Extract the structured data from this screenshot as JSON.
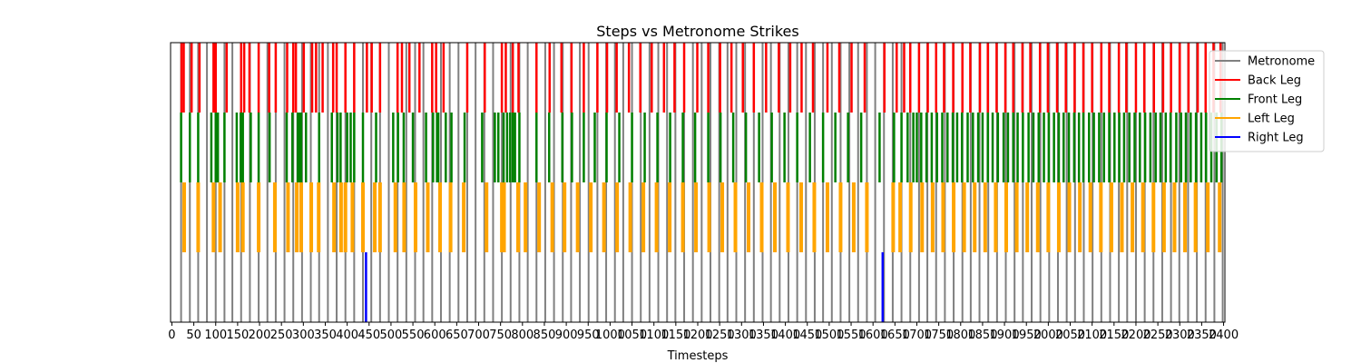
{
  "chart_data": {
    "type": "event-raster",
    "title": "Steps vs Metronome Strikes",
    "xlabel": "Timesteps",
    "ylabel": "",
    "xlim": [
      -3,
      2403
    ],
    "x_ticks": [
      0,
      50,
      100,
      150,
      200,
      250,
      300,
      350,
      400,
      450,
      500,
      550,
      600,
      650,
      700,
      750,
      800,
      850,
      900,
      950,
      1000,
      1050,
      1100,
      1150,
      1200,
      1250,
      1300,
      1350,
      1400,
      1450,
      1500,
      1550,
      1600,
      1650,
      1700,
      1750,
      1800,
      1850,
      1900,
      1950,
      2000,
      2050,
      2100,
      2150,
      2200,
      2250,
      2300,
      2350,
      2400
    ],
    "grid": false,
    "legend_position": "upper-right",
    "series": [
      {
        "name": "Metronome",
        "color": "#808080",
        "lane": [
          0,
          4
        ],
        "line_width": 2,
        "events": [
          21,
          41,
          60,
          80,
          100,
          120,
          138,
          158,
          178,
          198,
          218,
          237,
          257,
          277,
          297,
          317,
          336,
          356,
          376,
          396,
          416,
          436,
          455,
          475,
          495,
          515,
          535,
          555,
          574,
          594,
          614,
          634,
          654,
          674,
          693,
          713,
          733,
          753,
          773,
          793,
          812,
          832,
          852,
          872,
          892,
          911,
          931,
          951,
          971,
          991,
          1011,
          1030,
          1050,
          1070,
          1090,
          1110,
          1130,
          1149,
          1169,
          1189,
          1209,
          1229,
          1249,
          1268,
          1288,
          1308,
          1328,
          1348,
          1367,
          1387,
          1407,
          1427,
          1447,
          1467,
          1486,
          1506,
          1526,
          1546,
          1566,
          1586,
          1605,
          1625,
          1645,
          1665,
          1685,
          1705,
          1724,
          1744,
          1764,
          1784,
          1804,
          1823,
          1843,
          1863,
          1883,
          1903,
          1923,
          1942,
          1962,
          1982,
          2002,
          2022,
          2042,
          2061,
          2081,
          2101,
          2121,
          2141,
          2161,
          2180,
          2200,
          2220,
          2240,
          2260,
          2280,
          2299,
          2319,
          2339,
          2359,
          2379,
          2398
        ]
      },
      {
        "name": "Back Leg",
        "color": "#ff0000",
        "lane": [
          3,
          4
        ],
        "line_width": 2.5,
        "events": [
          22,
          27,
          45,
          63,
          95,
          100,
          125,
          158,
          165,
          177,
          198,
          222,
          237,
          263,
          277,
          283,
          301,
          320,
          329,
          344,
          368,
          376,
          396,
          416,
          445,
          456,
          475,
          515,
          525,
          542,
          565,
          594,
          603,
          620,
          674,
          714,
          753,
          762,
          778,
          791,
          832,
          862,
          889,
          912,
          940,
          971,
          993,
          1015,
          1043,
          1069,
          1095,
          1123,
          1147,
          1169,
          1199,
          1224,
          1251,
          1277,
          1303,
          1328,
          1356,
          1385,
          1411,
          1437,
          1463,
          1496,
          1523,
          1551,
          1581,
          1626,
          1654,
          1671,
          1685,
          1705,
          1725,
          1744,
          1762,
          1783,
          1804,
          1822,
          1844,
          1862,
          1882,
          1902,
          1920,
          1941,
          1959,
          1981,
          1999,
          2020,
          2040,
          2060,
          2080,
          2100,
          2121,
          2139,
          2161,
          2178,
          2200,
          2219,
          2241,
          2262,
          2280,
          2300,
          2320,
          2341,
          2359,
          2377,
          2393
        ]
      },
      {
        "name": "Front Leg",
        "color": "#008000",
        "lane": [
          2,
          3
        ],
        "line_width": 2.5,
        "events": [
          21,
          41,
          60,
          90,
          100,
          105,
          120,
          148,
          157,
          162,
          180,
          198,
          223,
          262,
          275,
          287,
          291,
          295,
          306,
          336,
          365,
          378,
          385,
          400,
          408,
          416,
          436,
          466,
          505,
          516,
          529,
          550,
          580,
          596,
          605,
          608,
          625,
          638,
          668,
          708,
          737,
          745,
          757,
          765,
          772,
          778,
          783,
          793,
          832,
          861,
          891,
          913,
          940,
          965,
          992,
          1021,
          1050,
          1079,
          1108,
          1137,
          1166,
          1194,
          1224,
          1252,
          1281,
          1310,
          1340,
          1369,
          1398,
          1427,
          1456,
          1486,
          1514,
          1543,
          1573,
          1615,
          1648,
          1665,
          1679,
          1692,
          1700,
          1710,
          1722,
          1734,
          1746,
          1758,
          1770,
          1782,
          1792,
          1803,
          1816,
          1828,
          1840,
          1850,
          1862,
          1873,
          1885,
          1898,
          1908,
          1920,
          1930,
          1942,
          1955,
          1966,
          1978,
          1990,
          2001,
          2013,
          2024,
          2035,
          2047,
          2059,
          2070,
          2080,
          2093,
          2104,
          2116,
          2127,
          2139,
          2151,
          2162,
          2173,
          2185,
          2197,
          2209,
          2221,
          2233,
          2245,
          2256,
          2268,
          2279,
          2292,
          2303,
          2314,
          2325,
          2337,
          2349,
          2360,
          2372,
          2384,
          2395
        ]
      },
      {
        "name": "Left Leg",
        "color": "#ffa500",
        "lane": [
          1,
          2
        ],
        "line_width": 4,
        "events": [
          28,
          60,
          95,
          110,
          150,
          162,
          198,
          235,
          265,
          285,
          295,
          318,
          335,
          370,
          386,
          396,
          412,
          436,
          463,
          475,
          510,
          530,
          556,
          584,
          612,
          636,
          666,
          718,
          753,
          758,
          790,
          807,
          838,
          868,
          896,
          926,
          956,
          986,
          1016,
          1046,
          1076,
          1106,
          1136,
          1166,
          1196,
          1226,
          1256,
          1286,
          1316,
          1346,
          1376,
          1406,
          1436,
          1466,
          1496,
          1526,
          1556,
          1586,
          1646,
          1662,
          1686,
          1712,
          1736,
          1760,
          1784,
          1808,
          1832,
          1856,
          1880,
          1904,
          1928,
          1952,
          1976,
          2000,
          2024,
          2048,
          2072,
          2096,
          2120,
          2144,
          2168,
          2192,
          2216,
          2240,
          2264,
          2288,
          2312,
          2336,
          2364,
          2391
        ]
      },
      {
        "name": "Right Leg",
        "color": "#0000ff",
        "lane": [
          0,
          1
        ],
        "line_width": 2.5,
        "events": [
          443,
          1622
        ]
      }
    ]
  }
}
